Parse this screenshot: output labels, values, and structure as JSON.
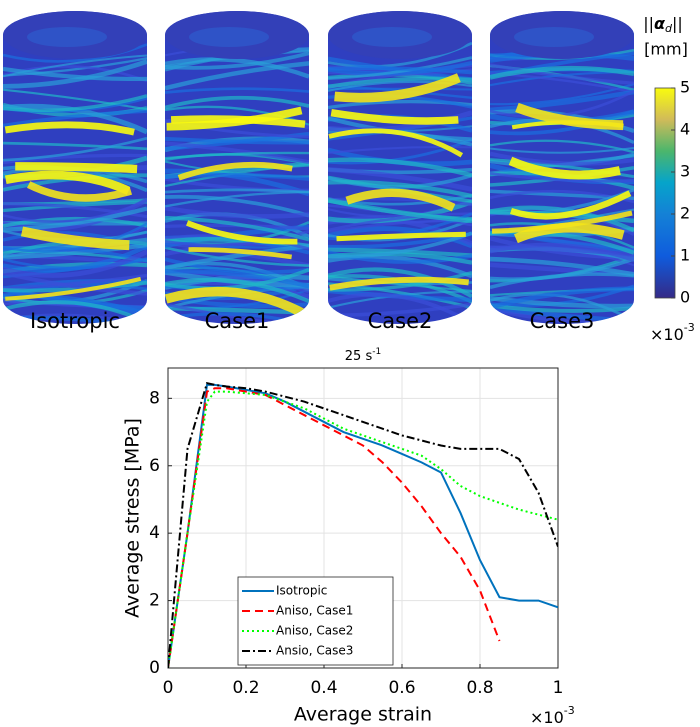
{
  "cases": [
    "Isotropic",
    "Case1",
    "Case2",
    "Case3"
  ],
  "colorbar": {
    "norm": "||",
    "symbol": "α",
    "subscript": "d",
    "unit": "[mm]",
    "lim": [
      0,
      5
    ],
    "ticks": [
      0,
      1,
      2,
      3,
      4,
      5
    ],
    "multiplier": {
      "base": "×10",
      "exponent": "-3"
    }
  },
  "chart_data": {
    "type": "line",
    "title": {
      "text": "25 s",
      "exponent": "-1"
    },
    "x_label": "Average strain",
    "y_label": "Average stress [MPa]",
    "x_multiplier": {
      "base": "×10",
      "exponent": "-3"
    },
    "x": [
      0,
      0.05,
      0.1,
      0.12,
      0.15,
      0.2,
      0.25,
      0.3,
      0.35,
      0.4,
      0.45,
      0.5,
      0.55,
      0.6,
      0.65,
      0.7,
      0.75,
      0.8,
      0.85,
      0.9,
      0.95,
      1.0
    ],
    "series": [
      {
        "name": "Isotropic",
        "color": "#0072bd",
        "style": "solid",
        "values": [
          0,
          4,
          8.4,
          8.4,
          8.35,
          8.25,
          8.15,
          7.9,
          7.6,
          7.3,
          7.0,
          6.8,
          6.6,
          6.35,
          6.1,
          5.8,
          4.6,
          3.2,
          2.1,
          2.0,
          2.0,
          1.8
        ]
      },
      {
        "name": "Aniso, Case1",
        "color": "#ff0000",
        "style": "dashed",
        "values": [
          0,
          4,
          8.2,
          8.3,
          8.3,
          8.2,
          8.1,
          7.8,
          7.5,
          7.2,
          6.9,
          6.6,
          6.1,
          5.5,
          4.8,
          4.0,
          3.3,
          2.3,
          0.8,
          null,
          null,
          null
        ]
      },
      {
        "name": "Aniso, Case2",
        "color": "#00ff00",
        "style": "dotted",
        "values": [
          0,
          4,
          7.9,
          8.2,
          8.2,
          8.15,
          8.1,
          7.9,
          7.7,
          7.4,
          7.1,
          6.9,
          6.7,
          6.5,
          6.3,
          5.9,
          5.4,
          5.1,
          4.9,
          4.7,
          4.55,
          4.4
        ]
      },
      {
        "name": "Ansio, Case3",
        "color": "#000000",
        "style": "dashdot",
        "values": [
          0,
          6.5,
          8.45,
          8.4,
          8.35,
          8.3,
          8.2,
          8.05,
          7.9,
          7.7,
          7.5,
          7.3,
          7.1,
          6.9,
          6.75,
          6.6,
          6.5,
          6.5,
          6.5,
          6.2,
          5.2,
          3.6
        ]
      }
    ],
    "xlim": [
      0,
      1
    ],
    "ylim": [
      0,
      8.9
    ],
    "xticks": [
      0,
      0.2,
      0.4,
      0.6,
      0.8,
      1
    ],
    "yticks": [
      0,
      2,
      4,
      6,
      8
    ],
    "grid": true,
    "legend": "lower left"
  }
}
